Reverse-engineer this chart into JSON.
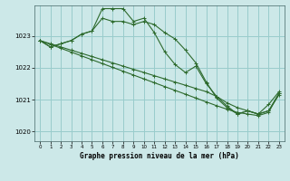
{
  "title": "Graphe pression niveau de la mer (hPa)",
  "bg_color": "#cce8e8",
  "grid_color": "#99cccc",
  "line_color": "#2d6a2d",
  "xlim": [
    -0.5,
    23.5
  ],
  "ylim": [
    1019.7,
    1023.95
  ],
  "yticks": [
    1020,
    1021,
    1022,
    1023
  ],
  "xticks": [
    0,
    1,
    2,
    3,
    4,
    5,
    6,
    7,
    8,
    9,
    10,
    11,
    12,
    13,
    14,
    15,
    16,
    17,
    18,
    19,
    20,
    21,
    22,
    23
  ],
  "series": [
    {
      "x": [
        0,
        1,
        2,
        3,
        4,
        5,
        6,
        7,
        8,
        9,
        10,
        11,
        12,
        13,
        14,
        15,
        16,
        17,
        18,
        19,
        20,
        21,
        22,
        23
      ],
      "y": [
        1022.85,
        1022.65,
        1022.75,
        1022.85,
        1023.05,
        1023.15,
        1023.85,
        1023.85,
        1023.85,
        1023.45,
        1023.55,
        1023.1,
        1022.5,
        1022.1,
        1021.85,
        1022.05,
        1021.5,
        1021.1,
        1020.8,
        1020.55,
        1020.65,
        1020.55,
        1020.85,
        1021.25
      ]
    },
    {
      "x": [
        0,
        1,
        2,
        3,
        4,
        5,
        6,
        7,
        8,
        9,
        10,
        11,
        12,
        13,
        14,
        15,
        16,
        17,
        18,
        19,
        20,
        21,
        22,
        23
      ],
      "y": [
        1022.85,
        1022.73,
        1022.61,
        1022.49,
        1022.37,
        1022.25,
        1022.13,
        1022.01,
        1021.89,
        1021.77,
        1021.65,
        1021.53,
        1021.41,
        1021.29,
        1021.17,
        1021.05,
        1020.93,
        1020.81,
        1020.7,
        1020.6,
        1020.55,
        1020.5,
        1020.6,
        1021.2
      ]
    },
    {
      "x": [
        0,
        1,
        2,
        3,
        4,
        5,
        6,
        7,
        8,
        9,
        10,
        11,
        12,
        13,
        14,
        15,
        16,
        17,
        18,
        19,
        20,
        21,
        22,
        23
      ],
      "y": [
        1022.85,
        1022.75,
        1022.65,
        1022.55,
        1022.45,
        1022.35,
        1022.25,
        1022.15,
        1022.05,
        1021.95,
        1021.85,
        1021.75,
        1021.65,
        1021.55,
        1021.45,
        1021.35,
        1021.25,
        1021.1,
        1020.9,
        1020.75,
        1020.65,
        1020.55,
        1020.65,
        1021.2
      ]
    },
    {
      "x": [
        0,
        1,
        2,
        3,
        4,
        5,
        6,
        7,
        8,
        9,
        10,
        11,
        12,
        13,
        14,
        15,
        16,
        17,
        18,
        19,
        20,
        21,
        22,
        23
      ],
      "y": [
        1022.85,
        1022.65,
        1022.75,
        1022.85,
        1023.05,
        1023.15,
        1023.55,
        1023.45,
        1023.45,
        1023.35,
        1023.45,
        1023.35,
        1023.1,
        1022.9,
        1022.55,
        1022.15,
        1021.55,
        1021.05,
        1020.75,
        1020.55,
        1020.65,
        1020.55,
        1020.65,
        1021.15
      ]
    }
  ]
}
